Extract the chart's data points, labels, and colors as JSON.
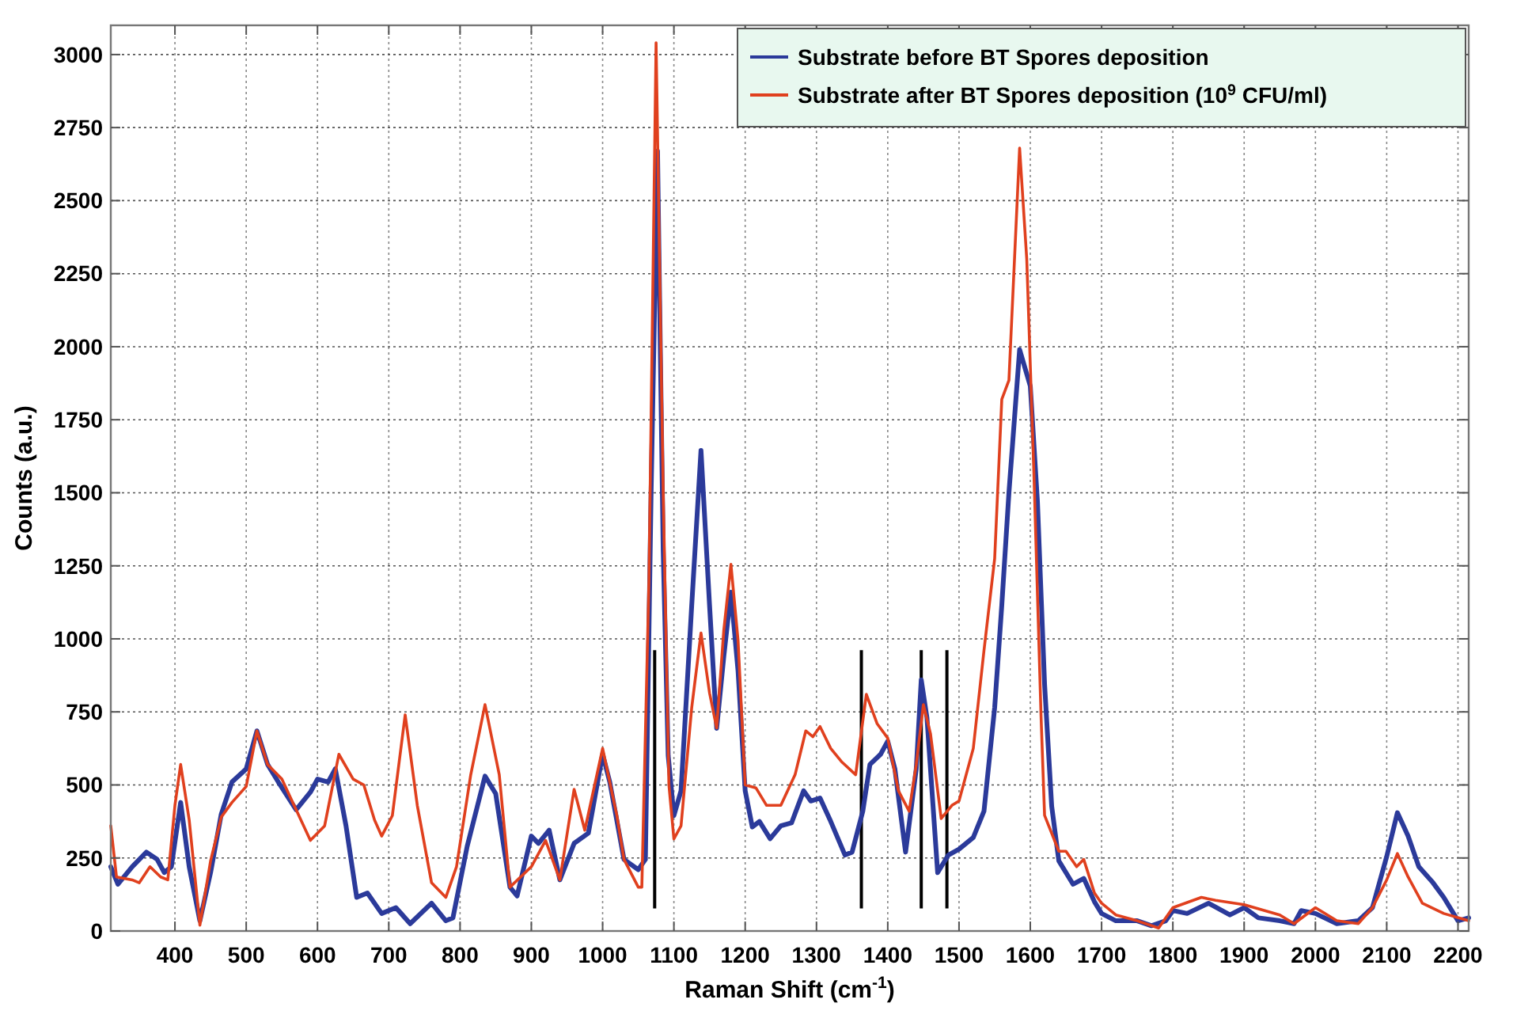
{
  "chart_data": {
    "type": "line",
    "xlabel": "Raman Shift (cm$^{-1}$)",
    "ylabel": "Counts (a.u.)",
    "xlim": [
      310,
      2215
    ],
    "ylim": [
      0,
      3100
    ],
    "xticks": [
      400,
      500,
      600,
      700,
      800,
      900,
      1000,
      1100,
      1200,
      1300,
      1400,
      1500,
      1600,
      1700,
      1800,
      1900,
      2000,
      2100,
      2200
    ],
    "yticks": [
      0,
      250,
      500,
      750,
      1000,
      1250,
      1500,
      1750,
      2000,
      2250,
      2500,
      2750,
      3000
    ],
    "grid": true,
    "legend": "top right",
    "line_style": "solid",
    "marker": "none",
    "ref_lines": [
      {
        "axis": "x",
        "value": 1073,
        "color": "#000000"
      },
      {
        "axis": "x",
        "value": 1363,
        "color": "#000000"
      },
      {
        "axis": "x",
        "value": 1447,
        "color": "#000000"
      },
      {
        "axis": "x",
        "value": 1483,
        "color": "#000000"
      }
    ],
    "series": [
      {
        "name": "Substrate before BT Spores deposition",
        "color": "#2b3a9a",
        "x": [
          310,
          320,
          340,
          360,
          375,
          385,
          395,
          408,
          420,
          435,
          450,
          465,
          480,
          500,
          515,
          530,
          545,
          570,
          590,
          600,
          615,
          625,
          640,
          655,
          670,
          690,
          710,
          730,
          760,
          780,
          790,
          810,
          835,
          850,
          870,
          880,
          900,
          910,
          925,
          940,
          960,
          980,
          1000,
          1010,
          1030,
          1050,
          1060,
          1068,
          1077,
          1085,
          1092,
          1100,
          1110,
          1125,
          1138,
          1150,
          1160,
          1170,
          1180,
          1190,
          1200,
          1210,
          1220,
          1235,
          1250,
          1265,
          1282,
          1292,
          1305,
          1320,
          1340,
          1350,
          1365,
          1375,
          1390,
          1400,
          1410,
          1425,
          1440,
          1447,
          1455,
          1470,
          1485,
          1500,
          1520,
          1535,
          1550,
          1560,
          1570,
          1585,
          1600,
          1610,
          1620,
          1630,
          1640,
          1660,
          1675,
          1690,
          1700,
          1720,
          1750,
          1770,
          1790,
          1800,
          1820,
          1850,
          1880,
          1900,
          1920,
          1950,
          1970,
          1980,
          2000,
          2030,
          2060,
          2080,
          2100,
          2115,
          2130,
          2145,
          2165,
          2180,
          2200,
          2215
        ],
        "values": [
          220,
          160,
          220,
          270,
          245,
          200,
          220,
          440,
          220,
          35,
          200,
          400,
          510,
          555,
          685,
          570,
          510,
          415,
          475,
          520,
          510,
          555,
          360,
          115,
          130,
          60,
          80,
          25,
          95,
          35,
          45,
          290,
          530,
          470,
          150,
          120,
          325,
          300,
          345,
          175,
          300,
          335,
          605,
          510,
          245,
          210,
          245,
          1500,
          2670,
          1300,
          600,
          395,
          480,
          1115,
          1645,
          1115,
          694,
          940,
          1160,
          890,
          480,
          356,
          375,
          316,
          360,
          370,
          480,
          445,
          455,
          375,
          260,
          270,
          410,
          570,
          605,
          650,
          555,
          270,
          555,
          860,
          730,
          200,
          260,
          280,
          320,
          410,
          765,
          1115,
          1500,
          1990,
          1865,
          1470,
          845,
          427,
          240,
          160,
          180,
          100,
          60,
          35,
          35,
          18,
          35,
          70,
          60,
          95,
          55,
          80,
          45,
          35,
          25,
          70,
          60,
          25,
          35,
          80,
          255,
          405,
          325,
          220,
          165,
          115,
          35,
          45
        ]
      },
      {
        "name": "Substrate after BT Spores deposition (10$^{9}$ CFU/ml)",
        "color": "#e0401e",
        "x": [
          310,
          318,
          340,
          350,
          365,
          380,
          390,
          400,
          408,
          420,
          435,
          450,
          465,
          480,
          500,
          515,
          530,
          550,
          570,
          590,
          610,
          630,
          650,
          665,
          680,
          690,
          705,
          723,
          740,
          760,
          780,
          795,
          815,
          835,
          855,
          870,
          900,
          920,
          940,
          960,
          975,
          1000,
          1020,
          1030,
          1050,
          1055,
          1065,
          1075,
          1085,
          1093,
          1100,
          1110,
          1125,
          1138,
          1150,
          1160,
          1170,
          1180,
          1190,
          1200,
          1215,
          1230,
          1250,
          1270,
          1285,
          1295,
          1305,
          1320,
          1335,
          1355,
          1370,
          1385,
          1400,
          1415,
          1430,
          1440,
          1450,
          1460,
          1475,
          1490,
          1500,
          1520,
          1535,
          1550,
          1560,
          1570,
          1585,
          1595,
          1605,
          1615,
          1620,
          1640,
          1650,
          1665,
          1675,
          1690,
          1700,
          1720,
          1750,
          1780,
          1800,
          1840,
          1860,
          1900,
          1950,
          1970,
          2000,
          2030,
          2060,
          2080,
          2100,
          2115,
          2130,
          2150,
          2180,
          2215
        ],
        "values": [
          360,
          185,
          175,
          165,
          220,
          185,
          175,
          430,
          570,
          380,
          20,
          240,
          390,
          440,
          495,
          685,
          570,
          520,
          415,
          310,
          360,
          605,
          520,
          500,
          380,
          325,
          395,
          740,
          430,
          165,
          115,
          220,
          535,
          775,
          535,
          150,
          220,
          310,
          175,
          485,
          345,
          625,
          395,
          245,
          150,
          150,
          1200,
          3040,
          1500,
          500,
          315,
          360,
          765,
          1020,
          815,
          695,
          1030,
          1255,
          995,
          500,
          490,
          430,
          430,
          535,
          685,
          665,
          700,
          625,
          580,
          535,
          810,
          710,
          660,
          480,
          410,
          570,
          775,
          675,
          385,
          430,
          445,
          625,
          960,
          1275,
          1820,
          1885,
          2680,
          2300,
          1570,
          740,
          396,
          273,
          273,
          220,
          245,
          130,
          95,
          55,
          35,
          10,
          80,
          115,
          105,
          90,
          55,
          25,
          80,
          35,
          25,
          80,
          175,
          265,
          185,
          95,
          60,
          35
        ]
      }
    ]
  }
}
